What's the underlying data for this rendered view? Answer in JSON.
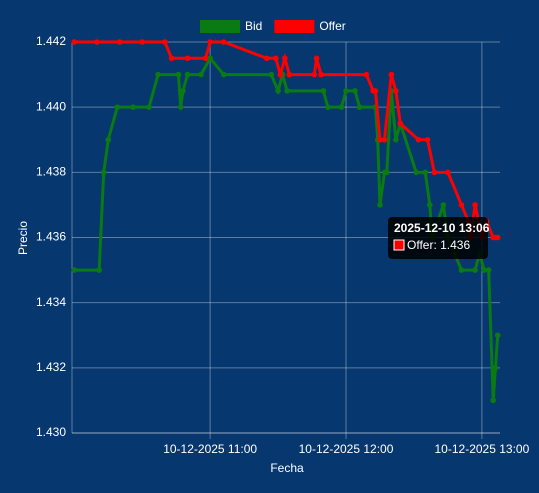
{
  "chart_data": {
    "type": "line",
    "x_label": "Fecha",
    "y_label": "Precio",
    "xlim": [
      "2025-12-10 09:59",
      "2025-12-10 13:08"
    ],
    "xticks": [
      {
        "value": "2025-12-10 11:00",
        "label": "10-12-2025 11:00"
      },
      {
        "value": "2025-12-10 12:00",
        "label": "10-12-2025 12:00"
      },
      {
        "value": "2025-12-10 13:00",
        "label": "10-12-2025 13:00"
      }
    ],
    "ylim": [
      1.43,
      1.442
    ],
    "yticks": [
      {
        "value": 1.43,
        "label": "1.430"
      },
      {
        "value": 1.432,
        "label": "1.432"
      },
      {
        "value": 1.434,
        "label": "1.434"
      },
      {
        "value": 1.436,
        "label": "1.436"
      },
      {
        "value": 1.438,
        "label": "1.438"
      },
      {
        "value": 1.44,
        "label": "1.440"
      },
      {
        "value": 1.442,
        "label": "1.442"
      }
    ],
    "grid": true,
    "legend": "top",
    "series": [
      {
        "name": "Bid",
        "color": "#0a7a12",
        "x": [
          "2025-12-10 10:00",
          "2025-12-10 10:11",
          "2025-12-10 10:13",
          "2025-12-10 10:15",
          "2025-12-10 10:19",
          "2025-12-10 10:26",
          "2025-12-10 10:33",
          "2025-12-10 10:37",
          "2025-12-10 10:46",
          "2025-12-10 10:47",
          "2025-12-10 10:48",
          "2025-12-10 10:50",
          "2025-12-10 10:56",
          "2025-12-10 11:00",
          "2025-12-10 11:06",
          "2025-12-10 11:27",
          "2025-12-10 11:30",
          "2025-12-10 11:32",
          "2025-12-10 11:34",
          "2025-12-10 11:50",
          "2025-12-10 11:52",
          "2025-12-10 11:58",
          "2025-12-10 12:00",
          "2025-12-10 12:04",
          "2025-12-10 12:06",
          "2025-12-10 12:13",
          "2025-12-10 12:14",
          "2025-12-10 12:15",
          "2025-12-10 12:17",
          "2025-12-10 12:18",
          "2025-12-10 12:20",
          "2025-12-10 12:22",
          "2025-12-10 12:24",
          "2025-12-10 12:31",
          "2025-12-10 12:35",
          "2025-12-10 12:37",
          "2025-12-10 12:38",
          "2025-12-10 12:43",
          "2025-12-10 12:45",
          "2025-12-10 12:51",
          "2025-12-10 12:57",
          "2025-12-10 12:59",
          "2025-12-10 13:01",
          "2025-12-10 13:03",
          "2025-12-10 13:05",
          "2025-12-10 13:06",
          "2025-12-10 13:07"
        ],
        "values": [
          1.435,
          1.435,
          1.438,
          1.439,
          1.44,
          1.44,
          1.44,
          1.441,
          1.441,
          1.44,
          1.4405,
          1.441,
          1.441,
          1.4415,
          1.441,
          1.441,
          1.4405,
          1.441,
          1.4405,
          1.4405,
          1.44,
          1.44,
          1.4405,
          1.4405,
          1.44,
          1.44,
          1.439,
          1.437,
          1.438,
          1.438,
          1.4405,
          1.439,
          1.4395,
          1.438,
          1.438,
          1.437,
          1.436,
          1.437,
          1.436,
          1.435,
          1.435,
          1.4355,
          1.435,
          1.435,
          1.431,
          1.432,
          1.433
        ]
      },
      {
        "name": "Offer",
        "color": "#ff0000",
        "x": [
          "2025-12-10 10:00",
          "2025-12-10 10:10",
          "2025-12-10 10:20",
          "2025-12-10 10:30",
          "2025-12-10 10:40",
          "2025-12-10 10:43",
          "2025-12-10 10:50",
          "2025-12-10 10:58",
          "2025-12-10 11:00",
          "2025-12-10 11:06",
          "2025-12-10 11:25",
          "2025-12-10 11:29",
          "2025-12-10 11:31",
          "2025-12-10 11:33",
          "2025-12-10 11:35",
          "2025-12-10 11:46",
          "2025-12-10 11:47",
          "2025-12-10 11:49",
          "2025-12-10 12:09",
          "2025-12-10 12:12",
          "2025-12-10 12:13",
          "2025-12-10 12:15",
          "2025-12-10 12:17",
          "2025-12-10 12:20",
          "2025-12-10 12:22",
          "2025-12-10 12:24",
          "2025-12-10 12:32",
          "2025-12-10 12:36",
          "2025-12-10 12:39",
          "2025-12-10 12:45",
          "2025-12-10 12:51",
          "2025-12-10 12:54",
          "2025-12-10 12:55",
          "2025-12-10 12:57",
          "2025-12-10 13:00",
          "2025-12-10 13:02",
          "2025-12-10 13:05",
          "2025-12-10 13:06",
          "2025-12-10 13:07"
        ],
        "values": [
          1.442,
          1.442,
          1.442,
          1.442,
          1.442,
          1.4415,
          1.4415,
          1.4415,
          1.442,
          1.442,
          1.4415,
          1.4415,
          1.441,
          1.4415,
          1.441,
          1.441,
          1.4415,
          1.441,
          1.441,
          1.4405,
          1.4405,
          1.439,
          1.439,
          1.441,
          1.4405,
          1.4395,
          1.439,
          1.439,
          1.438,
          1.438,
          1.437,
          1.4365,
          1.436,
          1.437,
          1.436,
          1.4365,
          1.436,
          1.436,
          1.436
        ]
      }
    ],
    "tooltip": {
      "title": "2025-12-10 13:06",
      "text": "Offer: 1.436"
    }
  }
}
